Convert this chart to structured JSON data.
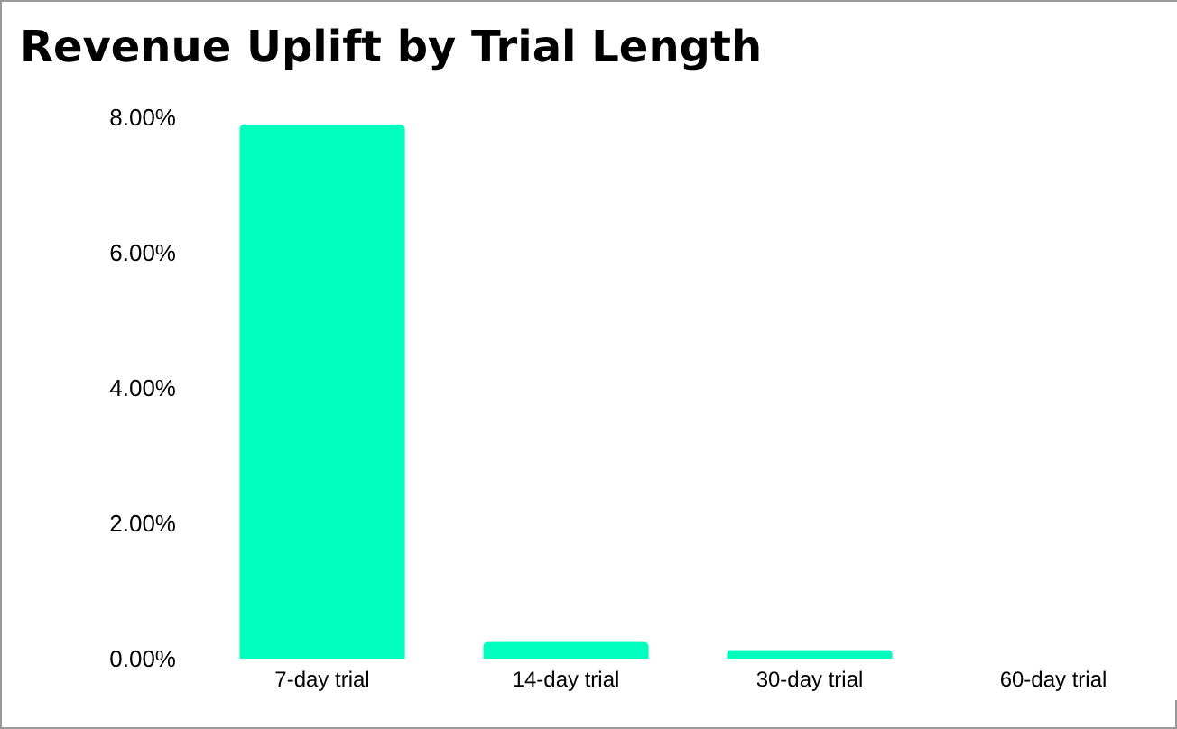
{
  "chart_data": {
    "type": "bar",
    "title": "Revenue Uplift by Trial Length",
    "categories": [
      "7-day trial",
      "14-day trial",
      "30-day trial",
      "60-day trial"
    ],
    "values": [
      7.9,
      0.25,
      0.13,
      0
    ],
    "color": "#00ffbf",
    "ylim": [
      0,
      8
    ],
    "yticks": [
      {
        "value": 0,
        "label": "0.00%"
      },
      {
        "value": 2,
        "label": "2.00%"
      },
      {
        "value": 4,
        "label": "4.00%"
      },
      {
        "value": 6,
        "label": "6.00%"
      },
      {
        "value": 8,
        "label": "8.00%"
      }
    ],
    "grid": false
  }
}
